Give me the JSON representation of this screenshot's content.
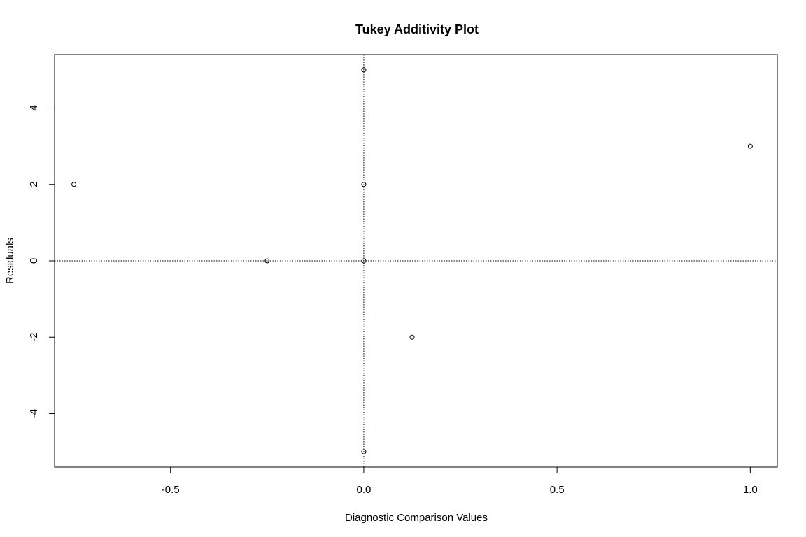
{
  "chart_data": {
    "type": "scatter",
    "title": "Tukey Additivity Plot",
    "xlabel": "Diagnostic Comparison Values",
    "ylabel": "Residuals",
    "xlim": [
      -0.8,
      1.07
    ],
    "ylim": [
      -5.4,
      5.4
    ],
    "xticks": [
      -0.5,
      0.0,
      0.5,
      1.0
    ],
    "xtick_labels": [
      "-0.5",
      "0.0",
      "0.5",
      "1.0"
    ],
    "yticks": [
      -4,
      -2,
      0,
      2,
      4
    ],
    "ytick_labels": [
      "-4",
      "-2",
      "0",
      "2",
      "4"
    ],
    "reference_lines": {
      "x": 0,
      "y": 0,
      "style": "dotted"
    },
    "grid": false,
    "points": [
      {
        "x": -0.75,
        "y": 2
      },
      {
        "x": -0.25,
        "y": 0
      },
      {
        "x": 0.0,
        "y": 5
      },
      {
        "x": 0.0,
        "y": 2
      },
      {
        "x": 0.0,
        "y": 0
      },
      {
        "x": 0.0,
        "y": -5
      },
      {
        "x": 0.125,
        "y": -2
      },
      {
        "x": 1.0,
        "y": 3
      }
    ],
    "colors": {
      "points": "#000000",
      "axes": "#000000",
      "background": "#ffffff"
    }
  }
}
